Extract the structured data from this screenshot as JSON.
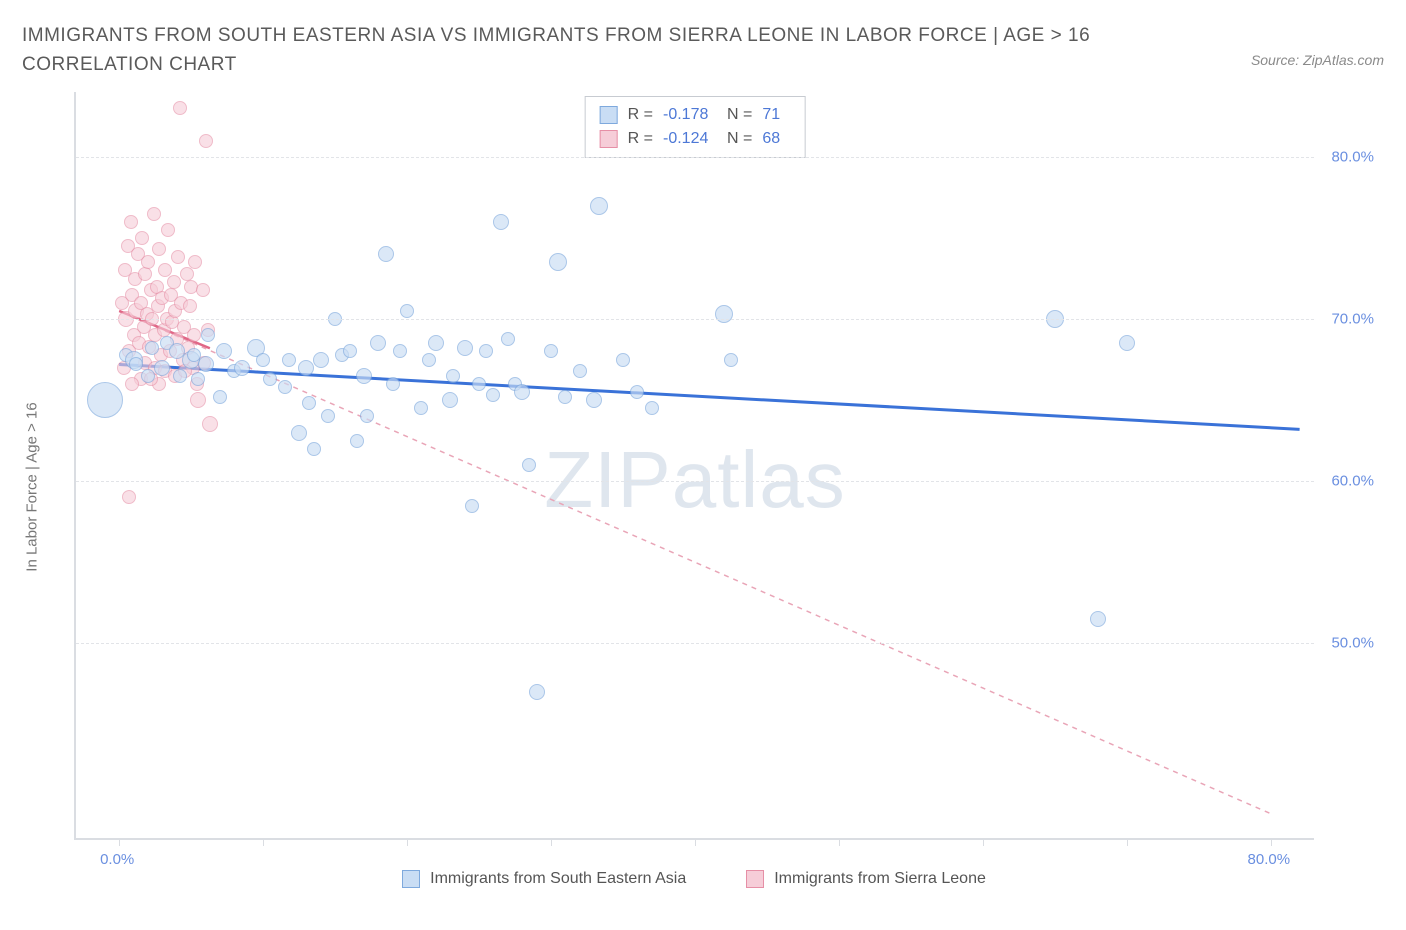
{
  "title": "IMMIGRANTS FROM SOUTH EASTERN ASIA VS IMMIGRANTS FROM SIERRA LEONE IN LABOR FORCE | AGE > 16 CORRELATION CHART",
  "source": "Source: ZipAtlas.com",
  "watermark_a": "ZIP",
  "watermark_b": "atlas",
  "chart": {
    "type": "scatter",
    "ylabel": "In Labor Force | Age > 16",
    "background_color": "#ffffff",
    "grid_color": "#e2e4e8",
    "axis_color": "#dadde2",
    "tick_color": "#6a8fe0",
    "xlim": [
      -3,
      83
    ],
    "ylim": [
      38,
      84
    ],
    "yticks": [
      {
        "v": 50,
        "label": "50.0%"
      },
      {
        "v": 60,
        "label": "60.0%"
      },
      {
        "v": 70,
        "label": "70.0%"
      },
      {
        "v": 80,
        "label": "80.0%"
      }
    ],
    "xticks": [
      {
        "v": 0,
        "label": "0.0%"
      },
      {
        "v": 10,
        "label": ""
      },
      {
        "v": 20,
        "label": ""
      },
      {
        "v": 30,
        "label": ""
      },
      {
        "v": 40,
        "label": ""
      },
      {
        "v": 50,
        "label": ""
      },
      {
        "v": 60,
        "label": ""
      },
      {
        "v": 70,
        "label": ""
      },
      {
        "v": 80,
        "label": "80.0%"
      }
    ],
    "series": [
      {
        "name": "Immigrants from South Eastern Asia",
        "fill": "#c9ddf4",
        "stroke": "#7ea9dd",
        "opacity": 0.65,
        "trend": {
          "x1": 0,
          "y1": 67.2,
          "x2": 82,
          "y2": 63.2,
          "color": "#3a72d8",
          "width": 3,
          "dash": "none"
        },
        "stats": {
          "R": "-0.178",
          "N": "71"
        },
        "points": [
          {
            "x": -1,
            "y": 65,
            "r": 18
          },
          {
            "x": 0.5,
            "y": 67.8,
            "r": 7
          },
          {
            "x": 1,
            "y": 67.5,
            "r": 9
          },
          {
            "x": 1.2,
            "y": 67.2,
            "r": 7
          },
          {
            "x": 2,
            "y": 66.5,
            "r": 7
          },
          {
            "x": 2.3,
            "y": 68.2,
            "r": 7
          },
          {
            "x": 3,
            "y": 67,
            "r": 8
          },
          {
            "x": 3.3,
            "y": 68.5,
            "r": 7
          },
          {
            "x": 4,
            "y": 68,
            "r": 8
          },
          {
            "x": 4.2,
            "y": 66.5,
            "r": 7
          },
          {
            "x": 5,
            "y": 67.5,
            "r": 9
          },
          {
            "x": 5.2,
            "y": 67.8,
            "r": 7
          },
          {
            "x": 5.5,
            "y": 66.3,
            "r": 7
          },
          {
            "x": 6,
            "y": 67.2,
            "r": 8
          },
          {
            "x": 6.2,
            "y": 69,
            "r": 7
          },
          {
            "x": 7,
            "y": 65.2,
            "r": 7
          },
          {
            "x": 7.3,
            "y": 68,
            "r": 8
          },
          {
            "x": 8,
            "y": 66.8,
            "r": 7
          },
          {
            "x": 8.5,
            "y": 67,
            "r": 8
          },
          {
            "x": 9.5,
            "y": 68.2,
            "r": 9
          },
          {
            "x": 10,
            "y": 67.5,
            "r": 7
          },
          {
            "x": 10.5,
            "y": 66.3,
            "r": 7
          },
          {
            "x": 11.5,
            "y": 65.8,
            "r": 7
          },
          {
            "x": 11.8,
            "y": 67.5,
            "r": 7
          },
          {
            "x": 12.5,
            "y": 63,
            "r": 8
          },
          {
            "x": 13,
            "y": 67,
            "r": 8
          },
          {
            "x": 13.2,
            "y": 64.8,
            "r": 7
          },
          {
            "x": 13.5,
            "y": 62,
            "r": 7
          },
          {
            "x": 14,
            "y": 67.5,
            "r": 8
          },
          {
            "x": 14.5,
            "y": 64,
            "r": 7
          },
          {
            "x": 15,
            "y": 70,
            "r": 7
          },
          {
            "x": 15.5,
            "y": 67.8,
            "r": 7
          },
          {
            "x": 16,
            "y": 68,
            "r": 7
          },
          {
            "x": 16.5,
            "y": 62.5,
            "r": 7
          },
          {
            "x": 17,
            "y": 66.5,
            "r": 8
          },
          {
            "x": 17.2,
            "y": 64,
            "r": 7
          },
          {
            "x": 18,
            "y": 68.5,
            "r": 8
          },
          {
            "x": 18.5,
            "y": 74,
            "r": 8
          },
          {
            "x": 19,
            "y": 66,
            "r": 7
          },
          {
            "x": 19.5,
            "y": 68,
            "r": 7
          },
          {
            "x": 20,
            "y": 70.5,
            "r": 7
          },
          {
            "x": 21,
            "y": 64.5,
            "r": 7
          },
          {
            "x": 21.5,
            "y": 67.5,
            "r": 7
          },
          {
            "x": 22,
            "y": 68.5,
            "r": 8
          },
          {
            "x": 23,
            "y": 65,
            "r": 8
          },
          {
            "x": 23.2,
            "y": 66.5,
            "r": 7
          },
          {
            "x": 24,
            "y": 68.2,
            "r": 8
          },
          {
            "x": 24.5,
            "y": 58.5,
            "r": 7
          },
          {
            "x": 25,
            "y": 66,
            "r": 7
          },
          {
            "x": 25.5,
            "y": 68,
            "r": 7
          },
          {
            "x": 26,
            "y": 65.3,
            "r": 7
          },
          {
            "x": 26.5,
            "y": 76,
            "r": 8
          },
          {
            "x": 27,
            "y": 68.8,
            "r": 7
          },
          {
            "x": 27.5,
            "y": 66,
            "r": 7
          },
          {
            "x": 28,
            "y": 65.5,
            "r": 8
          },
          {
            "x": 28.5,
            "y": 61,
            "r": 7
          },
          {
            "x": 29,
            "y": 47,
            "r": 8
          },
          {
            "x": 30,
            "y": 68,
            "r": 7
          },
          {
            "x": 30.5,
            "y": 73.5,
            "r": 9
          },
          {
            "x": 31,
            "y": 65.2,
            "r": 7
          },
          {
            "x": 32,
            "y": 66.8,
            "r": 7
          },
          {
            "x": 33,
            "y": 65,
            "r": 8
          },
          {
            "x": 33.3,
            "y": 77,
            "r": 9
          },
          {
            "x": 35,
            "y": 67.5,
            "r": 7
          },
          {
            "x": 36,
            "y": 65.5,
            "r": 7
          },
          {
            "x": 37,
            "y": 64.5,
            "r": 7
          },
          {
            "x": 42,
            "y": 70.3,
            "r": 9
          },
          {
            "x": 42.5,
            "y": 67.5,
            "r": 7
          },
          {
            "x": 65,
            "y": 70,
            "r": 9
          },
          {
            "x": 68,
            "y": 51.5,
            "r": 8
          },
          {
            "x": 70,
            "y": 68.5,
            "r": 8
          }
        ]
      },
      {
        "name": "Immigrants from Sierra Leone",
        "fill": "#f6cdd8",
        "stroke": "#e68fa6",
        "opacity": 0.6,
        "trend": {
          "x1": 0,
          "y1": 70.5,
          "x2": 80,
          "y2": 39.5,
          "color": "#e9a5b7",
          "width": 1.5,
          "dash": "5,5"
        },
        "trend_solid": {
          "x1": 0,
          "y1": 70.5,
          "x2": 6.3,
          "y2": 68.2,
          "color": "#e06686",
          "width": 2.5
        },
        "stats": {
          "R": "-0.124",
          "N": "68"
        },
        "points": [
          {
            "x": 0.2,
            "y": 71,
            "r": 7
          },
          {
            "x": 0.4,
            "y": 73,
            "r": 7
          },
          {
            "x": 0.5,
            "y": 70,
            "r": 8
          },
          {
            "x": 0.6,
            "y": 74.5,
            "r": 7
          },
          {
            "x": 0.7,
            "y": 68,
            "r": 7
          },
          {
            "x": 0.8,
            "y": 76,
            "r": 7
          },
          {
            "x": 0.9,
            "y": 71.5,
            "r": 7
          },
          {
            "x": 1,
            "y": 69,
            "r": 7
          },
          {
            "x": 1.1,
            "y": 72.5,
            "r": 7
          },
          {
            "x": 1.2,
            "y": 70.5,
            "r": 8
          },
          {
            "x": 1.3,
            "y": 74,
            "r": 7
          },
          {
            "x": 1.4,
            "y": 68.5,
            "r": 7
          },
          {
            "x": 1.5,
            "y": 71,
            "r": 7
          },
          {
            "x": 1.6,
            "y": 75,
            "r": 7
          },
          {
            "x": 1.7,
            "y": 69.5,
            "r": 7
          },
          {
            "x": 1.8,
            "y": 72.8,
            "r": 7
          },
          {
            "x": 1.9,
            "y": 70.3,
            "r": 7
          },
          {
            "x": 2,
            "y": 73.5,
            "r": 7
          },
          {
            "x": 2.1,
            "y": 68.3,
            "r": 7
          },
          {
            "x": 2.2,
            "y": 71.8,
            "r": 7
          },
          {
            "x": 2.3,
            "y": 70,
            "r": 7
          },
          {
            "x": 2.4,
            "y": 76.5,
            "r": 7
          },
          {
            "x": 2.5,
            "y": 69,
            "r": 7
          },
          {
            "x": 2.6,
            "y": 72,
            "r": 7
          },
          {
            "x": 2.7,
            "y": 70.8,
            "r": 7
          },
          {
            "x": 2.8,
            "y": 74.3,
            "r": 7
          },
          {
            "x": 2.9,
            "y": 67.8,
            "r": 7
          },
          {
            "x": 3,
            "y": 71.3,
            "r": 7
          },
          {
            "x": 3.1,
            "y": 69.3,
            "r": 7
          },
          {
            "x": 3.2,
            "y": 73,
            "r": 7
          },
          {
            "x": 3.3,
            "y": 70,
            "r": 7
          },
          {
            "x": 3.4,
            "y": 75.5,
            "r": 7
          },
          {
            "x": 3.5,
            "y": 68,
            "r": 7
          },
          {
            "x": 3.6,
            "y": 71.5,
            "r": 7
          },
          {
            "x": 3.7,
            "y": 69.8,
            "r": 7
          },
          {
            "x": 3.8,
            "y": 72.3,
            "r": 7
          },
          {
            "x": 3.9,
            "y": 70.5,
            "r": 7
          },
          {
            "x": 4,
            "y": 68.8,
            "r": 7
          },
          {
            "x": 4.1,
            "y": 73.8,
            "r": 7
          },
          {
            "x": 4.2,
            "y": 83,
            "r": 7
          },
          {
            "x": 4.3,
            "y": 71,
            "r": 7
          },
          {
            "x": 4.5,
            "y": 69.5,
            "r": 7
          },
          {
            "x": 4.7,
            "y": 72.8,
            "r": 7
          },
          {
            "x": 4.8,
            "y": 68.2,
            "r": 7
          },
          {
            "x": 4.9,
            "y": 70.8,
            "r": 7
          },
          {
            "x": 5,
            "y": 72,
            "r": 7
          },
          {
            "x": 5.2,
            "y": 69,
            "r": 7
          },
          {
            "x": 5.3,
            "y": 73.5,
            "r": 7
          },
          {
            "x": 5.5,
            "y": 65,
            "r": 8
          },
          {
            "x": 5.8,
            "y": 71.8,
            "r": 7
          },
          {
            "x": 6,
            "y": 81,
            "r": 7
          },
          {
            "x": 6.2,
            "y": 69.3,
            "r": 7
          },
          {
            "x": 6.3,
            "y": 63.5,
            "r": 8
          },
          {
            "x": 0.3,
            "y": 67,
            "r": 7
          },
          {
            "x": 0.7,
            "y": 59,
            "r": 7
          },
          {
            "x": 1.8,
            "y": 67.3,
            "r": 7
          },
          {
            "x": 2.5,
            "y": 67,
            "r": 7
          },
          {
            "x": 3.2,
            "y": 66.8,
            "r": 7
          },
          {
            "x": 4.4,
            "y": 67.5,
            "r": 7
          },
          {
            "x": 5.1,
            "y": 67,
            "r": 7
          },
          {
            "x": 5.9,
            "y": 67.3,
            "r": 7
          },
          {
            "x": 1.5,
            "y": 66.3,
            "r": 7
          },
          {
            "x": 2.8,
            "y": 66,
            "r": 7
          },
          {
            "x": 3.9,
            "y": 66.5,
            "r": 7
          },
          {
            "x": 0.9,
            "y": 66,
            "r": 7
          },
          {
            "x": 2.2,
            "y": 66.3,
            "r": 7
          },
          {
            "x": 4.6,
            "y": 66.8,
            "r": 7
          },
          {
            "x": 5.4,
            "y": 66,
            "r": 7
          }
        ]
      }
    ]
  }
}
